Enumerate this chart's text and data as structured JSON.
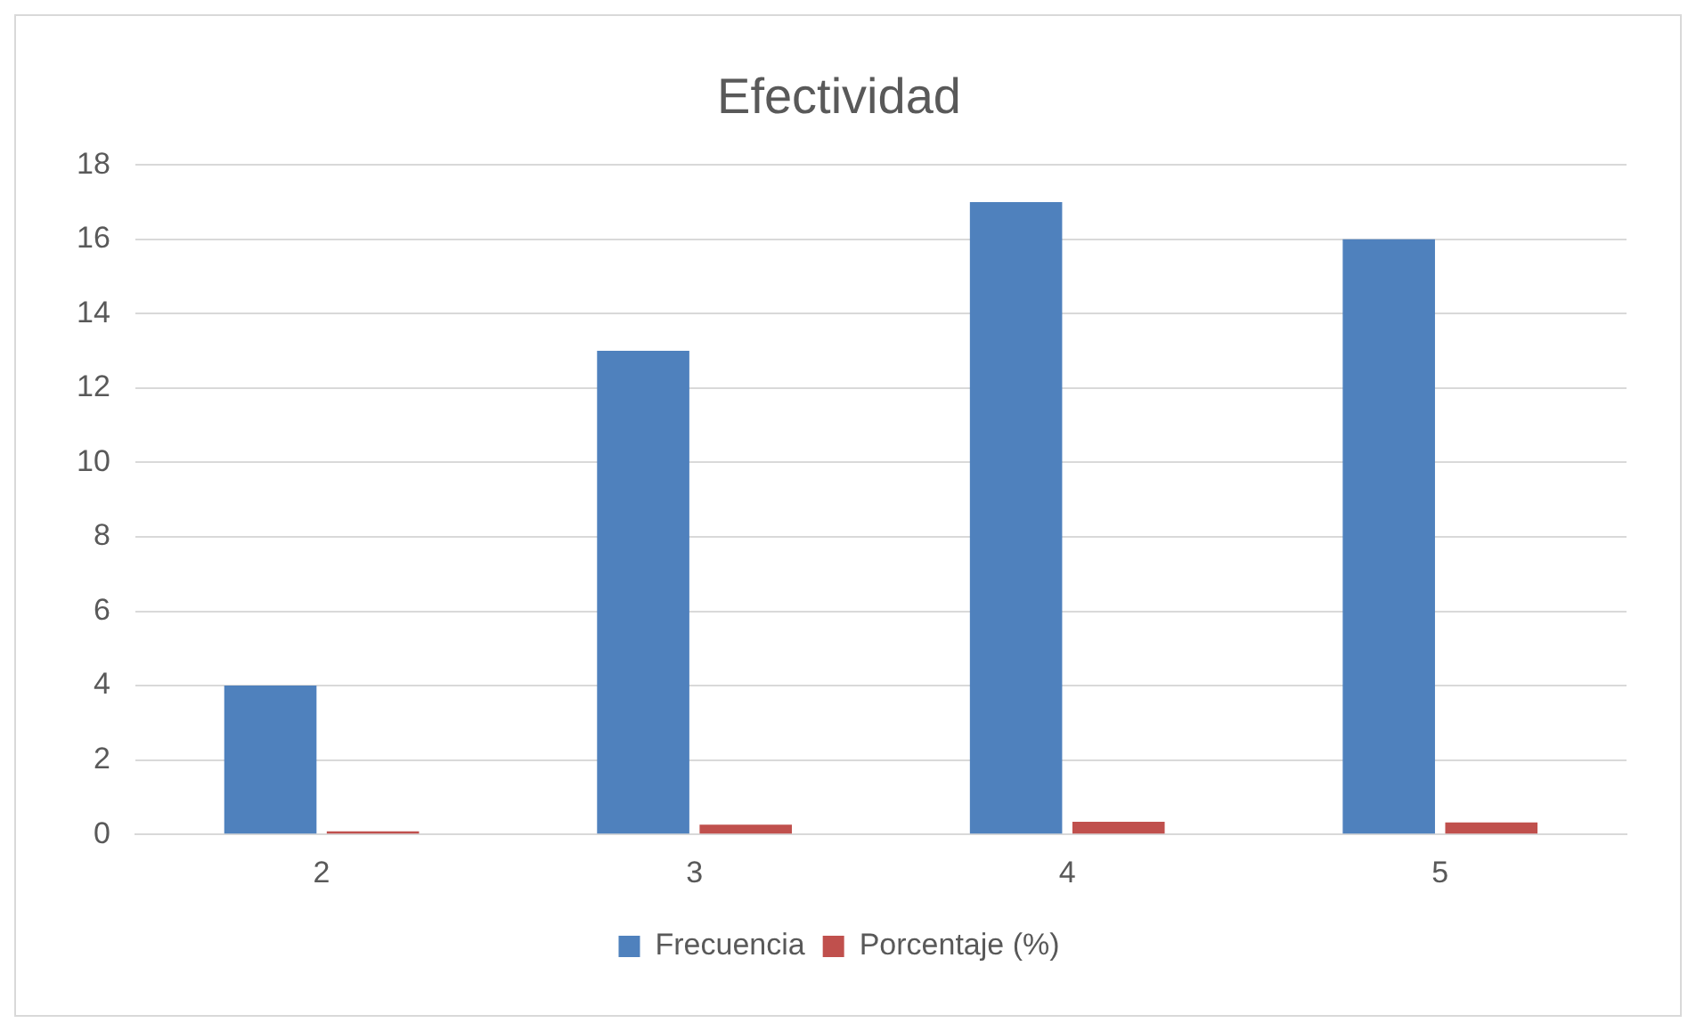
{
  "chart_data": {
    "type": "bar",
    "title": "Efectividad",
    "categories": [
      "2",
      "3",
      "4",
      "5"
    ],
    "series": [
      {
        "name": "Frecuencia",
        "color": "#4f81bd",
        "values": [
          4,
          13,
          17,
          16
        ]
      },
      {
        "name": "Porcentaje (%)",
        "color": "#c0504d",
        "values": [
          0.08,
          0.26,
          0.34,
          0.32
        ]
      }
    ],
    "ylim": [
      0,
      18
    ],
    "yticks": [
      0,
      2,
      4,
      6,
      8,
      10,
      12,
      14,
      16,
      18
    ],
    "grid": "y",
    "legend": "bottom"
  }
}
